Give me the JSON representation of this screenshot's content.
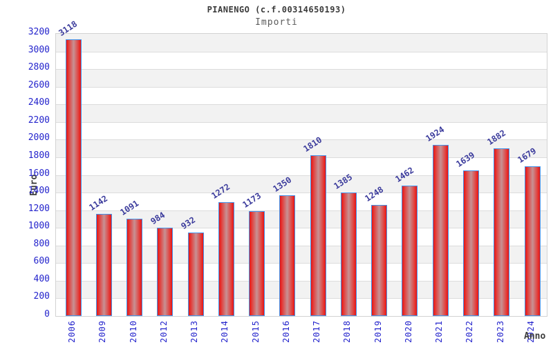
{
  "header": {
    "title": "PIANENGO (c.f.00314650193)",
    "subtitle": "Importi"
  },
  "chart_data": {
    "type": "bar",
    "title": "PIANENGO (c.f.00314650193)",
    "subtitle": "Importi",
    "xlabel": "Anno",
    "ylabel": "Euro",
    "categories": [
      "2006",
      "2009",
      "2010",
      "2012",
      "2013",
      "2014",
      "2015",
      "2016",
      "2017",
      "2018",
      "2019",
      "2020",
      "2021",
      "2022",
      "2023",
      "2024"
    ],
    "values": [
      3118,
      1142,
      1091,
      984,
      932,
      1272,
      1173,
      1350,
      1810,
      1385,
      1248,
      1462,
      1924,
      1639,
      1882,
      1679
    ],
    "ylim": [
      0,
      3200
    ],
    "ytick_step": 200,
    "grid": "horizontal-bands",
    "legend": "none",
    "colors": {
      "bar_edge": "#e81412",
      "bar_center": "#c79294",
      "bar_border": "#4294ec",
      "tick_label": "#2323cc",
      "value_label": "#3b3b9c",
      "band_gray": "#f2f2f2",
      "band_white": "#ffffff",
      "gridline": "#dcdcdc",
      "plot_border": "#d2d2d2",
      "title_color": "#3a3a3a",
      "subtitle_color": "#5a5a5a",
      "axis_label_color": "#3c3c3c"
    }
  }
}
